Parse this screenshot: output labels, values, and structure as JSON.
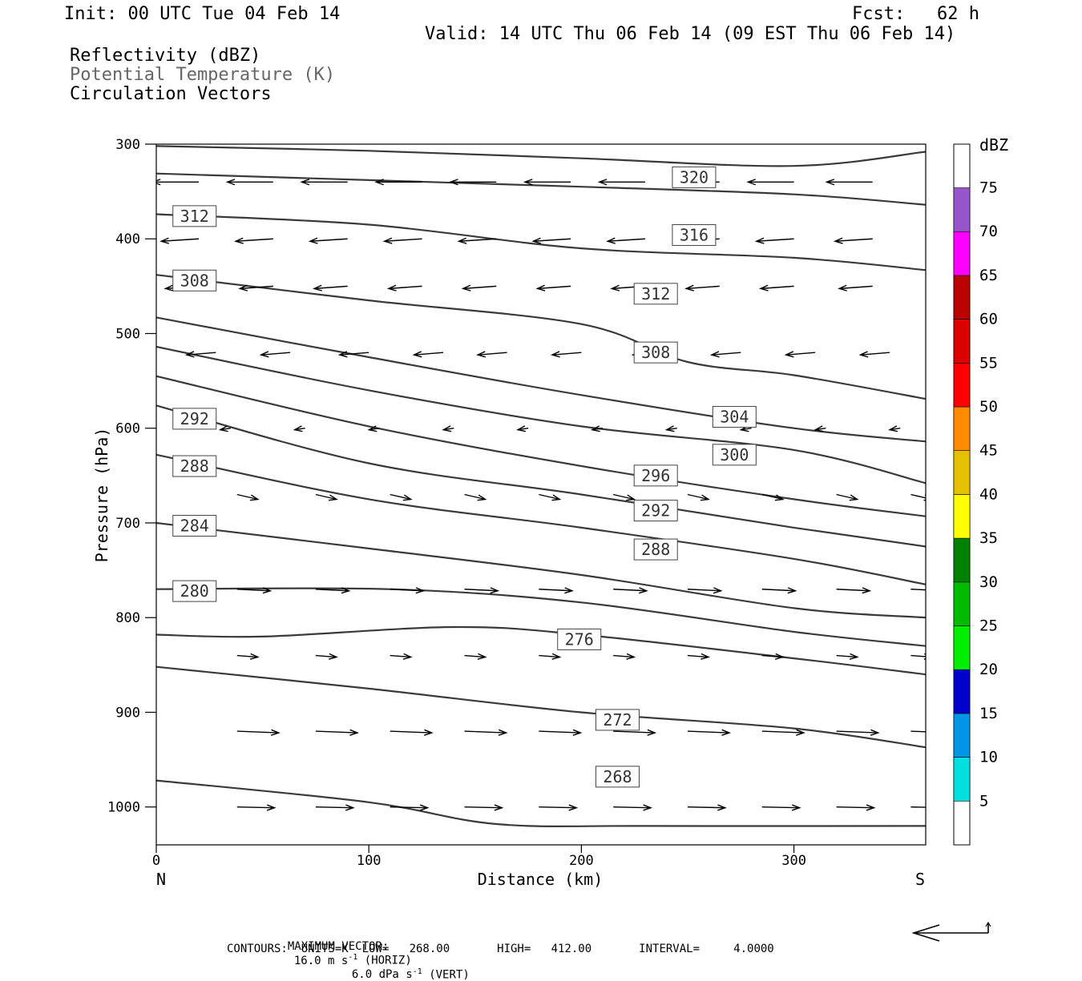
{
  "header": {
    "init": "Init: 00 UTC Tue 04 Feb 14",
    "fcst": "Fcst:   62 h",
    "valid": "Valid: 14 UTC Thu 06 Feb 14 (09 EST Thu 06 Feb 14)",
    "legend_reflectivity": "Reflectivity (dBZ)",
    "legend_theta": "Potential Temperature (K)",
    "legend_vectors": "Circulation Vectors"
  },
  "footer": {
    "max_vector_label": "MAXIMUM VECTOR:",
    "horiz": "16.0 m s",
    "horiz_sup": "-1",
    "horiz_tag": " (HORIZ)",
    "vert": "6.0 dPa s",
    "vert_sup": "-1",
    "vert_tag": " (VERT)",
    "contours": "CONTOURS:  UNITS=K  LOW=   268.00       HIGH=   412.00       INTERVAL=     4.0000"
  },
  "chart_data": {
    "type": "line",
    "xlabel": "Distance (km)",
    "ylabel": "Pressure (hPa)",
    "x_end_left": "N",
    "x_end_right": "S",
    "xlim": [
      0,
      362
    ],
    "ylim": [
      300,
      1040
    ],
    "y_reversed": true,
    "x_ticks": [
      0,
      100,
      200,
      300
    ],
    "y_ticks": [
      300,
      400,
      500,
      600,
      700,
      800,
      900,
      1000
    ],
    "colorbar": {
      "title": "dBZ",
      "labels": [
        5,
        10,
        15,
        20,
        25,
        30,
        35,
        40,
        45,
        50,
        55,
        60,
        65,
        70,
        75
      ],
      "colors": [
        "#00e0e0",
        "#0096e6",
        "#0000cd",
        "#00ee00",
        "#00bb00",
        "#008200",
        "#ffff00",
        "#e6c000",
        "#ff8c00",
        "#ff0000",
        "#dd0000",
        "#bb0000",
        "#ff00ff",
        "#9955cc"
      ]
    },
    "theta_contours": [
      {
        "value": 320,
        "points": [
          [
            0,
            302
          ],
          [
            100,
            307
          ],
          [
            200,
            315
          ],
          [
            300,
            323
          ],
          [
            362,
            308
          ]
        ]
      },
      {
        "value": 316,
        "points": [
          [
            0,
            331
          ],
          [
            100,
            338
          ],
          [
            200,
            345
          ],
          [
            300,
            353
          ],
          [
            362,
            364
          ]
        ]
      },
      {
        "value": 312,
        "points": [
          [
            0,
            374
          ],
          [
            100,
            385
          ],
          [
            200,
            410
          ],
          [
            300,
            420
          ],
          [
            362,
            433
          ]
        ]
      },
      {
        "value": 308,
        "points": [
          [
            0,
            438
          ],
          [
            100,
            465
          ],
          [
            200,
            490
          ],
          [
            250,
            530
          ],
          [
            300,
            544
          ],
          [
            362,
            569
          ]
        ]
      },
      {
        "value": 304,
        "points": [
          [
            0,
            483
          ],
          [
            100,
            525
          ],
          [
            200,
            565
          ],
          [
            300,
            600
          ],
          [
            362,
            614
          ]
        ]
      },
      {
        "value": 300,
        "points": [
          [
            0,
            514
          ],
          [
            100,
            560
          ],
          [
            200,
            598
          ],
          [
            300,
            623
          ],
          [
            362,
            658
          ]
        ]
      },
      {
        "value": 296,
        "points": [
          [
            0,
            545
          ],
          [
            100,
            598
          ],
          [
            200,
            640
          ],
          [
            300,
            675
          ],
          [
            362,
            693
          ]
        ]
      },
      {
        "value": 292,
        "points": [
          [
            0,
            576
          ],
          [
            100,
            637
          ],
          [
            200,
            670
          ],
          [
            300,
            705
          ],
          [
            362,
            725
          ]
        ]
      },
      {
        "value": 288,
        "points": [
          [
            0,
            628
          ],
          [
            100,
            675
          ],
          [
            200,
            705
          ],
          [
            300,
            738
          ],
          [
            362,
            765
          ]
        ]
      },
      {
        "value": 284,
        "points": [
          [
            0,
            700
          ],
          [
            100,
            727
          ],
          [
            200,
            755
          ],
          [
            300,
            790
          ],
          [
            362,
            800
          ]
        ]
      },
      {
        "value": 280,
        "points": [
          [
            0,
            770
          ],
          [
            110,
            770
          ],
          [
            200,
            784
          ],
          [
            300,
            815
          ],
          [
            362,
            830
          ]
        ]
      },
      {
        "value": 276,
        "points": [
          [
            0,
            818
          ],
          [
            50,
            820
          ],
          [
            140,
            810
          ],
          [
            200,
            818
          ],
          [
            300,
            843
          ],
          [
            362,
            860
          ]
        ]
      },
      {
        "value": 272,
        "points": [
          [
            0,
            852
          ],
          [
            100,
            875
          ],
          [
            200,
            900
          ],
          [
            300,
            917
          ],
          [
            362,
            937
          ]
        ]
      },
      {
        "value": 268,
        "points": [
          [
            0,
            972
          ],
          [
            100,
            995
          ],
          [
            160,
            1018
          ],
          [
            230,
            1020
          ],
          [
            362,
            1020
          ]
        ]
      }
    ],
    "contour_labels": [
      {
        "value": 320,
        "x": 253,
        "p": 335
      },
      {
        "value": 316,
        "x": 253,
        "p": 396
      },
      {
        "value": 312,
        "x": 18,
        "p": 376
      },
      {
        "value": 312,
        "x": 235,
        "p": 458
      },
      {
        "value": 308,
        "x": 18,
        "p": 444
      },
      {
        "value": 308,
        "x": 235,
        "p": 520
      },
      {
        "value": 304,
        "x": 272,
        "p": 588
      },
      {
        "value": 300,
        "x": 272,
        "p": 628
      },
      {
        "value": 296,
        "x": 235,
        "p": 650
      },
      {
        "value": 292,
        "x": 18,
        "p": 590
      },
      {
        "value": 292,
        "x": 235,
        "p": 687
      },
      {
        "value": 288,
        "x": 18,
        "p": 640
      },
      {
        "value": 288,
        "x": 235,
        "p": 728
      },
      {
        "value": 284,
        "x": 18,
        "p": 703
      },
      {
        "value": 280,
        "x": 18,
        "p": 772
      },
      {
        "value": 276,
        "x": 199,
        "p": 823
      },
      {
        "value": 272,
        "x": 217,
        "p": 908
      },
      {
        "value": 268,
        "x": 217,
        "p": 968
      }
    ],
    "vector_rows": [
      {
        "p": 340,
        "xs": [
          20,
          55,
          90,
          125,
          160,
          195,
          230,
          265,
          300,
          337
        ],
        "dx": -22,
        "dp": 0
      },
      {
        "p": 400,
        "xs": [
          20,
          55,
          90,
          125,
          160,
          195,
          230,
          265,
          300,
          337
        ],
        "dx": -18,
        "dp": 3
      },
      {
        "p": 450,
        "xs": [
          20,
          55,
          90,
          125,
          160,
          195,
          230,
          265,
          300,
          337
        ],
        "dx": -16,
        "dp": 3
      },
      {
        "p": 520,
        "xs": [
          28,
          63,
          100,
          135,
          165,
          200,
          238,
          275,
          310,
          345
        ],
        "dx": -14,
        "dp": 3
      },
      {
        "p": 600,
        "xs": [
          35,
          70,
          105,
          140,
          175,
          210,
          245,
          280,
          315,
          350
        ],
        "dx": -5,
        "dp": 2
      },
      {
        "p": 670,
        "xs": [
          38,
          75,
          110,
          145,
          180,
          215,
          250,
          285,
          320,
          355
        ],
        "dx": 10,
        "dp": 6
      },
      {
        "p": 770,
        "xs": [
          38,
          75,
          110,
          145,
          180,
          215,
          250,
          285,
          320,
          355
        ],
        "dx": 16,
        "dp": 2
      },
      {
        "p": 840,
        "xs": [
          38,
          75,
          110,
          145,
          180,
          215,
          250,
          285,
          320,
          355
        ],
        "dx": 10,
        "dp": 2
      },
      {
        "p": 920,
        "xs": [
          38,
          75,
          110,
          145,
          180,
          215,
          250,
          285,
          320,
          355
        ],
        "dx": 20,
        "dp": 2
      },
      {
        "p": 1000,
        "xs": [
          38,
          75,
          110,
          145,
          180,
          215,
          250,
          285,
          320,
          355
        ],
        "dx": 18,
        "dp": 1
      }
    ]
  }
}
